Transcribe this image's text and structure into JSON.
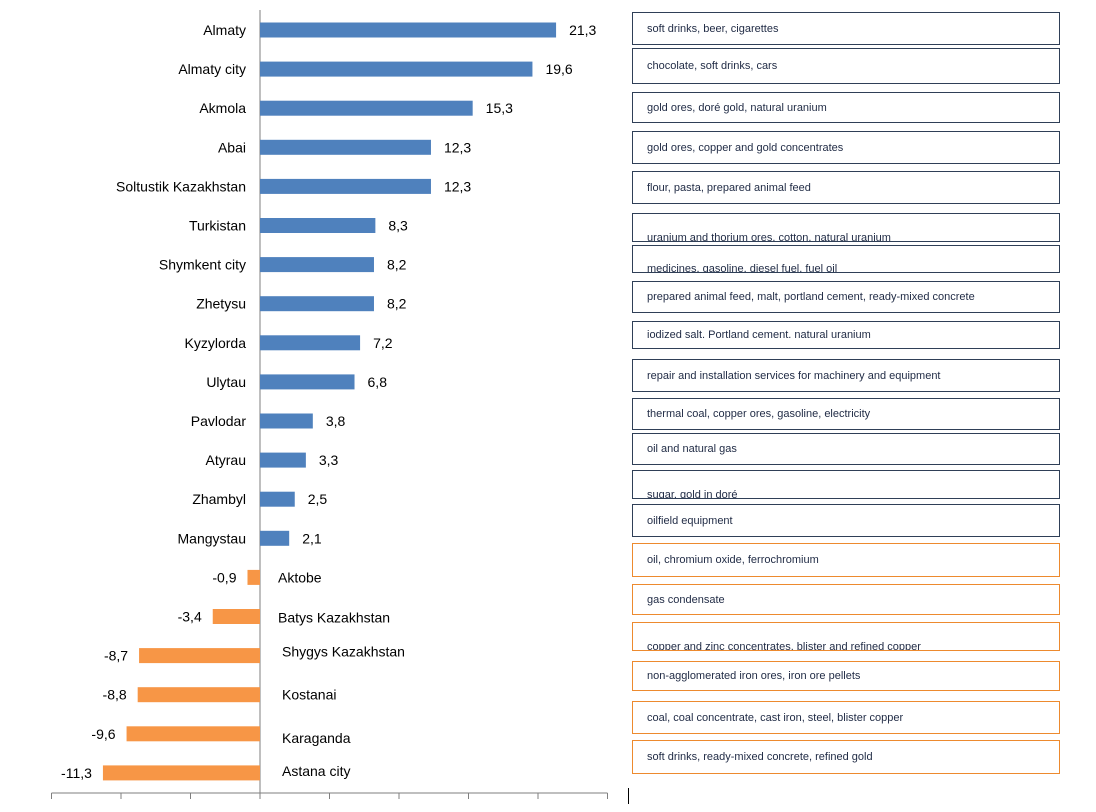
{
  "chart_data": {
    "type": "bar",
    "orientation": "horizontal",
    "categories": [
      "Almaty",
      "Almaty city",
      "Akmola",
      "Abai",
      "Soltustik Kazakhstan",
      "Turkistan",
      "Shymkent city",
      "Zhetysu",
      "Kyzylorda",
      "Ulytau",
      "Pavlodar",
      "Atyrau",
      "Zhambyl",
      "Mangystau",
      "Aktobe",
      "Batys Kazakhstan",
      "Shygys Kazakhstan",
      "Kostanai",
      "Karaganda",
      "Astana city"
    ],
    "values": [
      21.3,
      19.6,
      15.3,
      12.3,
      12.3,
      8.3,
      8.2,
      8.2,
      7.2,
      6.8,
      3.8,
      3.3,
      2.5,
      2.1,
      -0.9,
      -3.4,
      -8.7,
      -8.8,
      -9.6,
      -11.3
    ],
    "data_labels": [
      "21,3",
      "19,6",
      "15,3",
      "12,3",
      "12,3",
      "8,3",
      "8,2",
      "8,2",
      "7,2",
      "6,8",
      "3,8",
      "3,3",
      "2,5",
      "2,1",
      "-0,9",
      "-3,4",
      "-8,7",
      "-8,8",
      "-9,6",
      "-11,3"
    ],
    "colors": {
      "positive": "#4f81bd",
      "negative": "#f79646"
    },
    "xlim": [
      -15,
      25
    ],
    "title": "",
    "xlabel": "",
    "ylabel": "",
    "grid": false,
    "legend": "none"
  },
  "products": [
    "soft drinks, beer, cigarettes",
    "chocolate, soft drinks, cars",
    "gold ores, doré gold, natural uranium",
    "gold ores, copper and gold concentrates",
    "flour, pasta, prepared animal feed",
    "uranium and thorium ores. cotton. natural uranium",
    "medicines. gasoline. diesel fuel. fuel oil",
    "prepared animal feed, malt, portland cement, ready-mixed concrete",
    "iodized salt. Portland cement. natural uranium",
    "repair and installation services for machinery and equipment",
    "thermal coal, copper ores, gasoline, electricity",
    "oil and natural gas",
    "sugar. gold in doré",
    "oilfield equipment",
    "oil, chromium oxide, ferrochromium",
    "gas condensate",
    "copper and zinc concentrates. blister and refined copper",
    "non-agglomerated iron ores, iron ore pellets",
    "coal, coal concentrate, cast iron, steel, blister copper",
    "soft drinks, ready-mixed concrete, refined gold"
  ]
}
